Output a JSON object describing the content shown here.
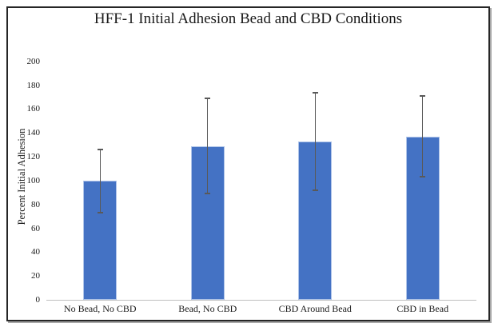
{
  "chart_data": {
    "type": "bar",
    "title": "HFF-1 Initial Adhesion Bead and CBD Conditions",
    "ylabel": "Percent Initial Adhesion",
    "xlabel": "",
    "categories": [
      "No Bead, No CBD",
      "Bead, No CBD",
      "CBD Around Bead",
      "CBD in Bead"
    ],
    "values": [
      100,
      129,
      133,
      137
    ],
    "error_up": [
      26,
      40,
      41,
      34
    ],
    "error_down": [
      27,
      40,
      41,
      34
    ],
    "ylim": [
      0,
      200
    ],
    "yticks": [
      0,
      20,
      40,
      60,
      80,
      100,
      120,
      140,
      160,
      180,
      200
    ],
    "grid": false,
    "legend_position": "none",
    "colors": {
      "bar_fill": "#4472C4",
      "bar_edge": "#aec3e8",
      "error_bar": "#595959",
      "axis_line": "#bfbfbf",
      "text": "#1a1a1a",
      "frame_border": "#262626",
      "frame_shadow": "#a8a8a8",
      "page_background": "#ffffff"
    }
  }
}
